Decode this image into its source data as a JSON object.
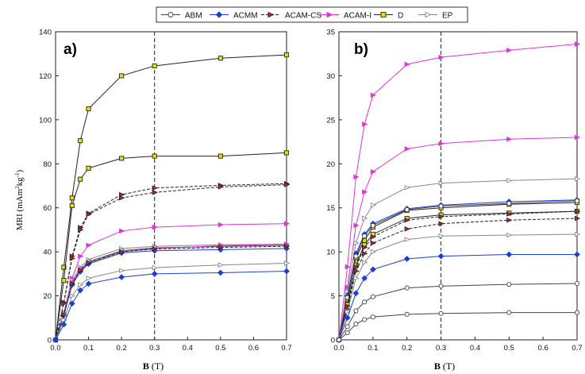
{
  "chart_data": [
    {
      "type": "line",
      "panel_label": "a)",
      "xlabel_bold": "B",
      "xlabel_unit": " (T)",
      "ylabel_prefix": "MRI (mAm",
      "ylabel_sup1": "2",
      "ylabel_mid": "kg",
      "ylabel_sup2": "-1",
      "ylabel_suffix": ")",
      "xlim": [
        0,
        0.7
      ],
      "ylim": [
        0,
        140
      ],
      "xticks": [
        0,
        0.1,
        0.2,
        0.3,
        0.4,
        0.5,
        0.6,
        0.7
      ],
      "xtick_labels": [
        "0.0",
        "0.1",
        "0.2",
        "0.3",
        "0.4",
        "0.5",
        "0.6",
        "0.7"
      ],
      "yticks": [
        0,
        20,
        40,
        60,
        80,
        100,
        120,
        140
      ],
      "ytick_labels": [
        "0",
        "20",
        "40",
        "60",
        "80",
        "100",
        "120",
        "140"
      ],
      "vline_x": 0.3,
      "x": [
        0,
        0.025,
        0.05,
        0.075,
        0.1,
        0.2,
        0.3,
        0.5,
        0.7
      ],
      "series": [
        {
          "name": "D",
          "values": [
            0,
            33,
            64.5,
            90.5,
            105,
            120,
            124.5,
            128,
            129.5
          ]
        },
        {
          "name": "D",
          "values": [
            0,
            27,
            61,
            73,
            78,
            82.5,
            83.5,
            83.5,
            85
          ]
        },
        {
          "name": "ACAM-CS",
          "values": [
            0,
            17,
            38,
            51,
            57.5,
            66,
            69,
            70.2,
            71
          ]
        },
        {
          "name": "ACAM-CS",
          "values": [
            0,
            16.5,
            37,
            50,
            57,
            64.5,
            67,
            69.5,
            70.5
          ]
        },
        {
          "name": "ACAM-I",
          "values": [
            0,
            12,
            28,
            38,
            43,
            49.5,
            51.2,
            52.3,
            52.8
          ]
        },
        {
          "name": "EP",
          "values": [
            0,
            12,
            27,
            33,
            36.5,
            41.5,
            42.5,
            43.2,
            43.5
          ]
        },
        {
          "name": "ABM",
          "values": [
            0,
            12,
            26,
            32,
            35.5,
            40.5,
            41.8,
            42.5,
            43
          ]
        },
        {
          "name": "ACAM-I",
          "values": [
            0,
            11.5,
            26,
            32,
            35,
            40,
            41.5,
            42.8,
            43.5
          ]
        },
        {
          "name": "ACMM",
          "values": [
            0,
            11,
            25,
            31,
            34.5,
            39.5,
            40.5,
            41,
            41.5
          ]
        },
        {
          "name": "ACAM-CS",
          "values": [
            0,
            11.5,
            25.5,
            31.5,
            35,
            40,
            41.3,
            42,
            42.5
          ]
        },
        {
          "name": "EP",
          "values": [
            0,
            9,
            20,
            25,
            28,
            31.5,
            32.8,
            34,
            34.8
          ]
        },
        {
          "name": "ACMM",
          "values": [
            0,
            7,
            16.5,
            22.5,
            25.5,
            28.5,
            30,
            30.5,
            31.2
          ]
        }
      ]
    },
    {
      "type": "line",
      "panel_label": "b)",
      "xlabel_bold": "B",
      "xlabel_unit": " (T)",
      "xlim": [
        0,
        0.7
      ],
      "ylim": [
        0,
        35
      ],
      "xticks": [
        0,
        0.1,
        0.2,
        0.3,
        0.4,
        0.5,
        0.6,
        0.7
      ],
      "xtick_labels": [
        "0.0",
        "0.1",
        "0.2",
        "0.3",
        "0.4",
        "0.5",
        "0.6",
        "0.7"
      ],
      "yticks": [
        0,
        5,
        10,
        15,
        20,
        25,
        30,
        35
      ],
      "ytick_labels": [
        "0",
        "5",
        "10",
        "15",
        "20",
        "25",
        "30",
        "35"
      ],
      "vline_x": 0.3,
      "x": [
        0,
        0.025,
        0.05,
        0.075,
        0.1,
        0.2,
        0.3,
        0.5,
        0.7
      ],
      "series": [
        {
          "name": "ACAM-I",
          "values": [
            0,
            8.3,
            18.5,
            24.5,
            27.8,
            31.3,
            32.1,
            32.9,
            33.6
          ]
        },
        {
          "name": "ACAM-I",
          "values": [
            0,
            6,
            13,
            16.8,
            19.1,
            21.7,
            22.3,
            22.8,
            23
          ]
        },
        {
          "name": "EP",
          "values": [
            0,
            5.5,
            11,
            13.8,
            15.3,
            17.3,
            17.8,
            18.1,
            18.3
          ]
        },
        {
          "name": "ACMM",
          "values": [
            0,
            5,
            9.8,
            12,
            13.2,
            14.9,
            15.3,
            15.7,
            15.9
          ]
        },
        {
          "name": "D",
          "values": [
            0,
            4.5,
            9.3,
            11.3,
            12.8,
            14.7,
            15,
            15.4,
            15.6
          ]
        },
        {
          "name": "ABM",
          "values": [
            0,
            4.8,
            9.5,
            11.8,
            13,
            14.8,
            15.2,
            15.5,
            15.8
          ]
        },
        {
          "name": "D",
          "values": [
            0,
            4,
            8.5,
            10.8,
            12,
            13.8,
            14.2,
            14.4,
            14.6
          ]
        },
        {
          "name": "ACAM-CS",
          "values": [
            0,
            3.8,
            8.3,
            10.5,
            11.7,
            13.6,
            14,
            14.3,
            14.6
          ]
        },
        {
          "name": "ACAM-CS",
          "values": [
            0,
            3.5,
            7.8,
            9.8,
            11,
            12.6,
            13.2,
            13.6,
            13.8
          ]
        },
        {
          "name": "EP",
          "values": [
            0,
            3.2,
            7,
            8.8,
            10,
            11.4,
            11.8,
            11.9,
            12
          ]
        },
        {
          "name": "ACMM",
          "values": [
            0,
            2.5,
            5.3,
            7,
            8,
            9.2,
            9.5,
            9.7,
            9.7
          ]
        },
        {
          "name": "ABM",
          "values": [
            0,
            1.5,
            3.3,
            4.3,
            4.9,
            5.9,
            6.1,
            6.3,
            6.4
          ]
        },
        {
          "name": "ABM",
          "values": [
            0,
            0.8,
            1.8,
            2.3,
            2.6,
            2.9,
            3,
            3.1,
            3.1
          ]
        }
      ]
    }
  ],
  "legend": {
    "placement": "top-center",
    "items": [
      {
        "name": "ABM",
        "color": "#444444",
        "marker": "circle",
        "fill": "#ffffff",
        "dash": "solid"
      },
      {
        "name": "ACMM",
        "color": "#1a3fd6",
        "marker": "diamond",
        "fill": "#1a3fd6",
        "dash": "solid"
      },
      {
        "name": "ACAM-CS",
        "color": "#222222",
        "marker": "triangle",
        "fill": "#d42020",
        "dash": "dashed"
      },
      {
        "name": "ACAM-I",
        "color": "#e035d8",
        "marker": "triangle",
        "fill": "#e035d8",
        "dash": "solid"
      },
      {
        "name": "D",
        "color": "#222222",
        "marker": "square",
        "fill": "#e8e000",
        "dash": "solid"
      },
      {
        "name": "EP",
        "color": "#888888",
        "marker": "triangle",
        "fill": "#ffffff",
        "dash": "solid"
      }
    ]
  }
}
